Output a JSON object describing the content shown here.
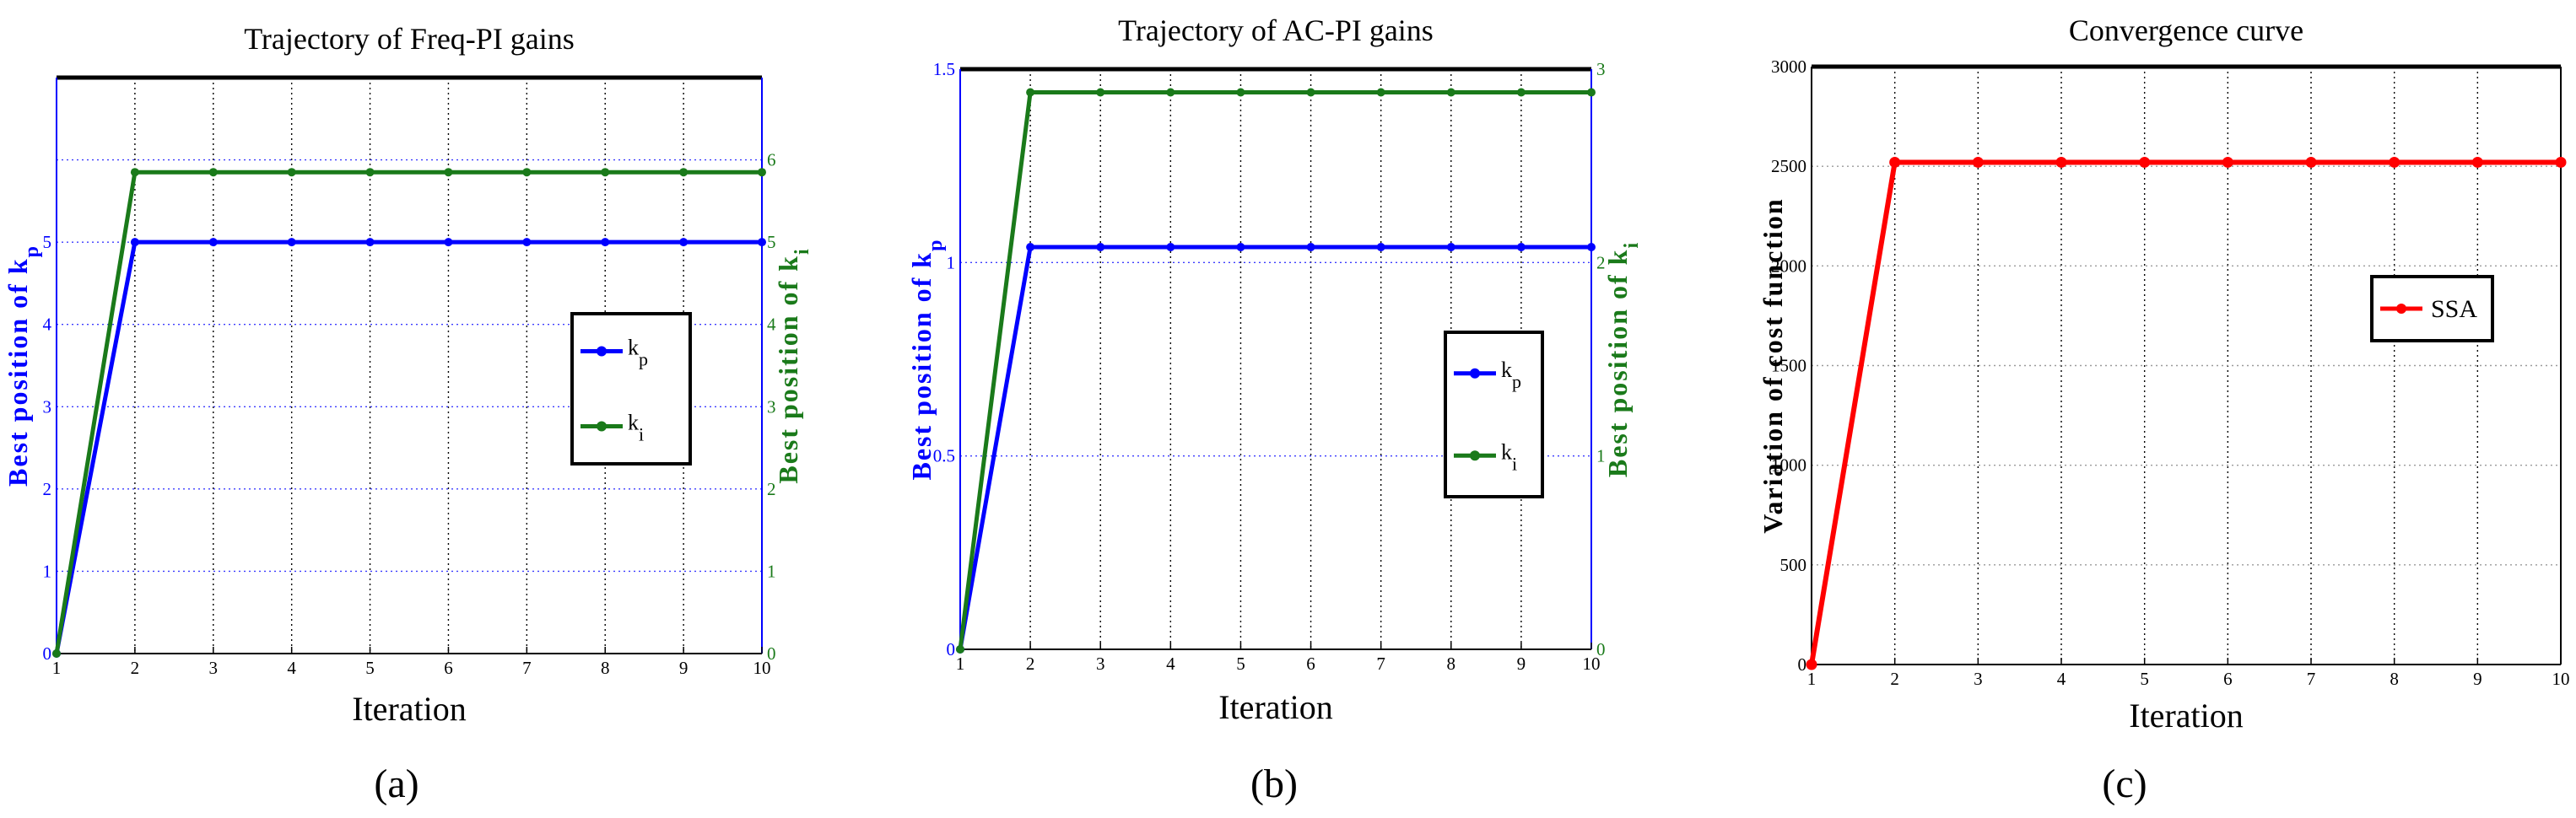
{
  "figure": {
    "panel_labels": [
      "(a)",
      "(b)",
      "(c)"
    ]
  },
  "chart_data": [
    {
      "type": "line",
      "title": "Trajectory of Freq-PI gains",
      "xlabel": "Iteration",
      "ylabel_left": "Best position of k_p",
      "ylabel_right": "Best position of k_i",
      "x": [
        1,
        2,
        3,
        4,
        5,
        6,
        7,
        8,
        9,
        10
      ],
      "xlim": [
        1,
        10
      ],
      "xticks": [
        "1",
        "2",
        "3",
        "4",
        "5",
        "6",
        "7",
        "8",
        "9",
        "10"
      ],
      "ylim_left": [
        0,
        7
      ],
      "yticks_left": [
        "0",
        "1",
        "2",
        "3",
        "4",
        "5"
      ],
      "ylim_right": [
        0,
        7
      ],
      "yticks_right": [
        "0",
        "1",
        "2",
        "3",
        "4",
        "5",
        "6"
      ],
      "grid": true,
      "legend_position": "center-right",
      "series": [
        {
          "name": "k_p",
          "axis": "left",
          "color": "#0000ff",
          "values": [
            0,
            5,
            5,
            5,
            5,
            5,
            5,
            5,
            5,
            5
          ]
        },
        {
          "name": "k_i",
          "axis": "right",
          "color": "#1a7a1a",
          "values": [
            0,
            5.85,
            5.85,
            5.85,
            5.85,
            5.85,
            5.85,
            5.85,
            5.85,
            5.85
          ]
        }
      ]
    },
    {
      "type": "line",
      "title": "Trajectory of AC-PI gains",
      "xlabel": "Iteration",
      "ylabel_left": "Best position of k_p",
      "ylabel_right": "Best position of k_i",
      "x": [
        1,
        2,
        3,
        4,
        5,
        6,
        7,
        8,
        9,
        10
      ],
      "xlim": [
        1,
        10
      ],
      "xticks": [
        "1",
        "2",
        "3",
        "4",
        "5",
        "6",
        "7",
        "8",
        "9",
        "10"
      ],
      "ylim_left": [
        0,
        1.5
      ],
      "yticks_left": [
        "0",
        "0.5",
        "1",
        "1.5"
      ],
      "ylim_right": [
        0,
        3
      ],
      "yticks_right": [
        "0",
        "1",
        "2",
        "3"
      ],
      "grid": true,
      "legend_position": "center-right",
      "series": [
        {
          "name": "k_p",
          "axis": "left",
          "color": "#0000ff",
          "values": [
            0,
            1.04,
            1.04,
            1.04,
            1.04,
            1.04,
            1.04,
            1.04,
            1.04,
            1.04
          ]
        },
        {
          "name": "k_i",
          "axis": "right",
          "color": "#1a7a1a",
          "values": [
            0,
            2.88,
            2.88,
            2.88,
            2.88,
            2.88,
            2.88,
            2.88,
            2.88,
            2.88
          ]
        }
      ]
    },
    {
      "type": "line",
      "title": "Convergence curve",
      "xlabel": "Iteration",
      "ylabel_left": "Variation of cost function",
      "x": [
        1,
        2,
        3,
        4,
        5,
        6,
        7,
        8,
        9,
        10
      ],
      "xlim": [
        1,
        10
      ],
      "xticks": [
        "1",
        "2",
        "3",
        "4",
        "5",
        "6",
        "7",
        "8",
        "9",
        "10"
      ],
      "ylim_left": [
        0,
        3000
      ],
      "yticks_left": [
        "0",
        "500",
        "1000",
        "1500",
        "2000",
        "2500",
        "3000"
      ],
      "grid": true,
      "legend_position": "center-right",
      "series": [
        {
          "name": "SSA",
          "axis": "left",
          "color": "#ff0000",
          "values": [
            0,
            2520,
            2520,
            2520,
            2520,
            2520,
            2520,
            2520,
            2520,
            2520
          ]
        }
      ]
    }
  ]
}
